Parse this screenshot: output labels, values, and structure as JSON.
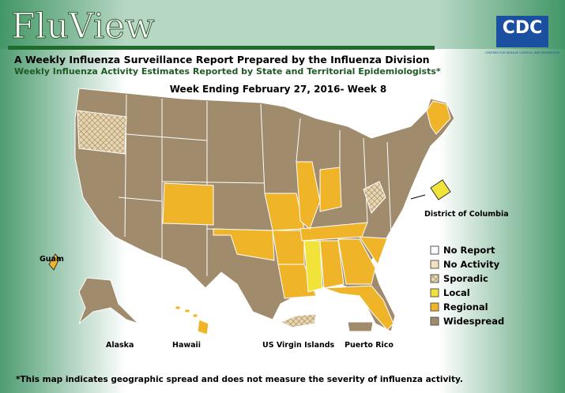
{
  "header": {
    "title": "FluView",
    "logo": "CDC",
    "logo_subtitle": "CENTERS FOR DISEASE CONTROL AND PREVENTION",
    "line1": "A Weekly Influenza Surveillance Report Prepared by the Influenza Division",
    "line2": "Weekly Influenza Activity Estimates Reported by State and Territorial Epidemiologists*",
    "week": "Week Ending February 27, 2016- Week 8"
  },
  "legend": [
    {
      "label": "No Report",
      "color": "#ffffff"
    },
    {
      "label": "No Activity",
      "color": "#f3e2c0"
    },
    {
      "label": "Sporadic",
      "color": "#d9c9a3"
    },
    {
      "label": "Local",
      "color": "#f2e33a"
    },
    {
      "label": "Regional",
      "color": "#f0b429"
    },
    {
      "label": "Widespread",
      "color": "#a08b6c"
    }
  ],
  "labels": {
    "dc": "District of Columbia",
    "guam": "Guam",
    "alaska": "Alaska",
    "hawaii": "Hawaii",
    "usvi": "US Virgin Islands",
    "pr": "Puerto Rico"
  },
  "footnote": "*This map indicates geographic spread and does not measure the severity of influenza activity."
}
